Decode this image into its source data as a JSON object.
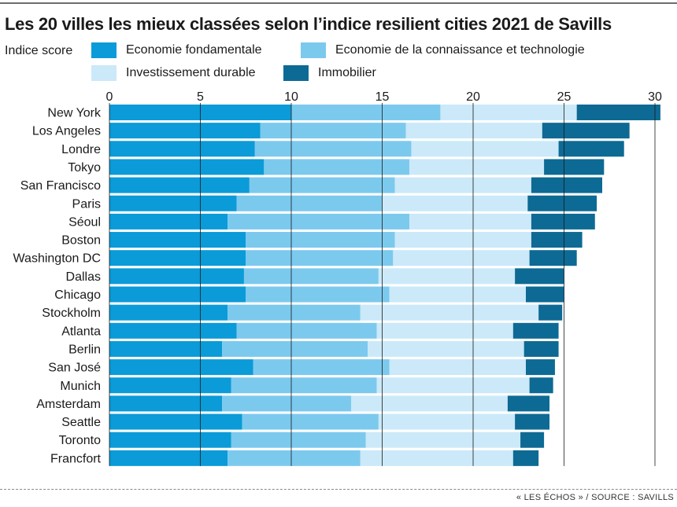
{
  "header": {
    "title": "Les 20 villes les mieux classées selon l’indice resilient cities 2021 de Savills",
    "legend_title": "Indice score"
  },
  "footer": {
    "source": "« LES ÉCHOS » / SOURCE : SAVILLS"
  },
  "chart_data": {
    "type": "bar",
    "orientation": "horizontal",
    "stacked": true,
    "title": "Les 20 villes les mieux classées selon l’indice resilient cities 2021 de Savills",
    "xlabel": "",
    "ylabel": "",
    "xlim": [
      0,
      30
    ],
    "x_ticks": [
      0,
      5,
      10,
      15,
      20,
      25,
      30
    ],
    "grid": "vertical",
    "legend_position": "top",
    "categories": [
      "New York",
      "Los Angeles",
      "Londre",
      "Tokyo",
      "San Francisco",
      "Paris",
      "Séoul",
      "Boston",
      "Washington DC",
      "Dallas",
      "Chicago",
      "Stockholm",
      "Atlanta",
      "Berlin",
      "San José",
      "Munich",
      "Amsterdam",
      "Seattle",
      "Toronto",
      "Francfort"
    ],
    "series": [
      {
        "name": "Economie fondamentale",
        "color": "#0a9bd8",
        "values": [
          10.0,
          8.3,
          8.0,
          8.5,
          7.7,
          7.0,
          6.5,
          7.5,
          7.5,
          7.4,
          7.5,
          6.5,
          7.0,
          6.2,
          7.9,
          6.7,
          6.2,
          7.3,
          6.7,
          6.5
        ]
      },
      {
        "name": "Economie de la connaissance et technologie",
        "color": "#7cc9ee",
        "values": [
          8.2,
          8.0,
          8.6,
          8.0,
          8.0,
          8.0,
          10.0,
          8.2,
          8.1,
          7.4,
          7.9,
          7.3,
          7.7,
          8.0,
          7.5,
          8.0,
          7.1,
          7.5,
          7.4,
          7.3
        ]
      },
      {
        "name": "Investissement durable",
        "color": "#cbe9f9",
        "values": [
          7.5,
          7.5,
          8.1,
          7.4,
          7.5,
          8.0,
          6.7,
          7.5,
          7.5,
          7.5,
          7.5,
          9.8,
          7.5,
          8.6,
          7.5,
          8.4,
          8.6,
          7.5,
          8.5,
          8.4
        ]
      },
      {
        "name": "Immobilier",
        "color": "#0d6a94",
        "values": [
          4.6,
          4.8,
          3.6,
          3.3,
          3.9,
          3.8,
          3.5,
          2.8,
          2.6,
          2.7,
          2.1,
          1.3,
          2.5,
          1.9,
          1.6,
          1.3,
          2.3,
          1.9,
          1.3,
          1.4
        ]
      }
    ]
  }
}
